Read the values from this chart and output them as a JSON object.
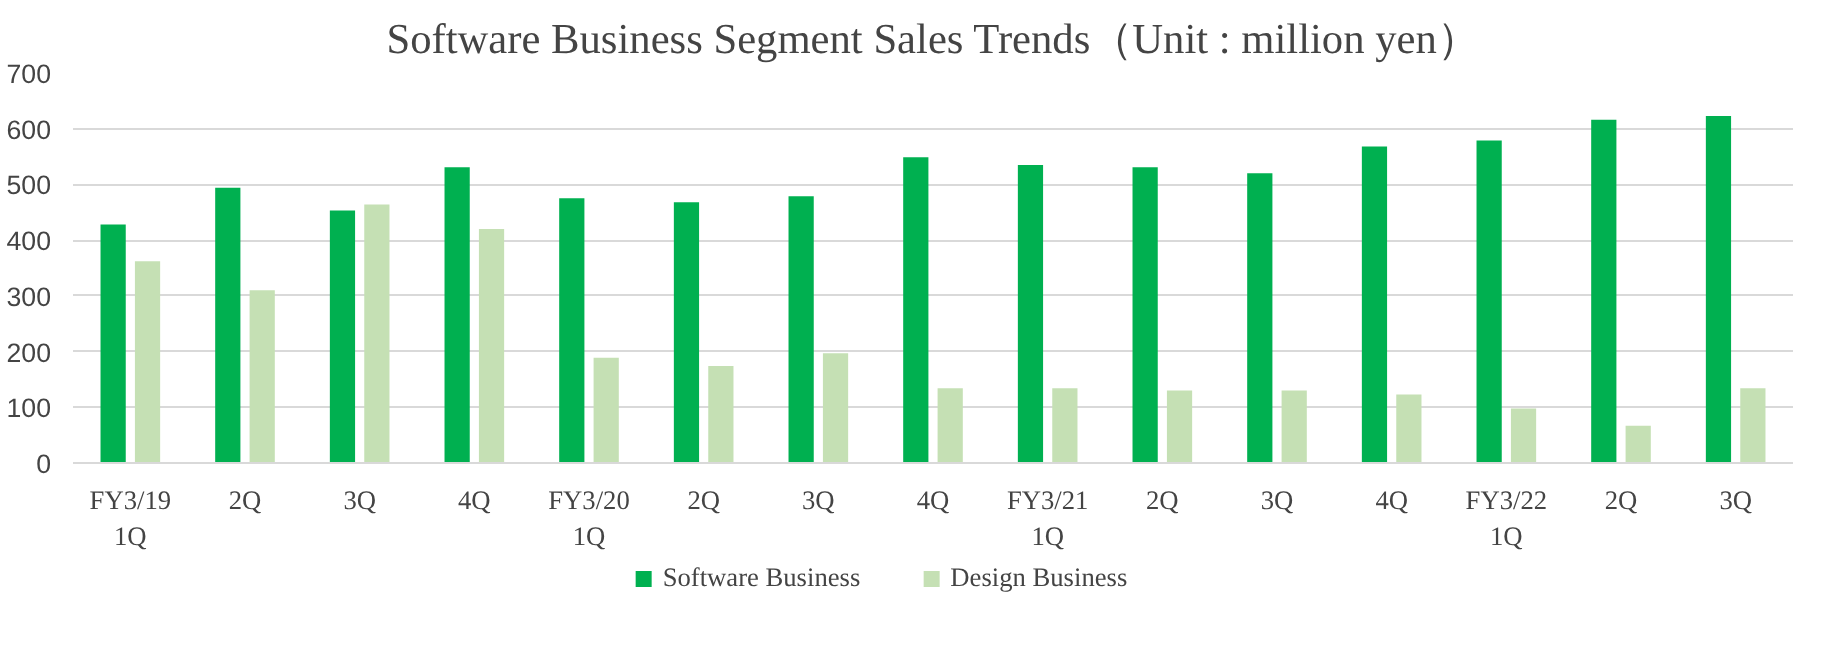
{
  "chart_data": {
    "type": "bar",
    "title": "Software Business Segment Sales Trends（Unit : million yen）",
    "categories": [
      "FY3/19\n1Q",
      "2Q",
      "3Q",
      "4Q",
      "FY3/20\n1Q",
      "2Q",
      "3Q",
      "4Q",
      "FY3/21\n1Q",
      "2Q",
      "3Q",
      "4Q",
      "FY3/22\n1Q",
      "2Q",
      "3Q"
    ],
    "series": [
      {
        "name": "Software Business",
        "color": "#00b050",
        "values": [
          428,
          494,
          453,
          531,
          475,
          468,
          479,
          549,
          535,
          531,
          520,
          568,
          579,
          616,
          623
        ]
      },
      {
        "name": "Design Business",
        "color": "#c5e0b4",
        "values": [
          362,
          310,
          464,
          420,
          189,
          174,
          197,
          134,
          134,
          130,
          130,
          123,
          98,
          67,
          134
        ]
      }
    ],
    "ylim": [
      0,
      700
    ],
    "yticks": [
      0,
      100,
      200,
      300,
      400,
      500,
      600,
      700
    ],
    "grid": "y",
    "legend": "bottom"
  }
}
